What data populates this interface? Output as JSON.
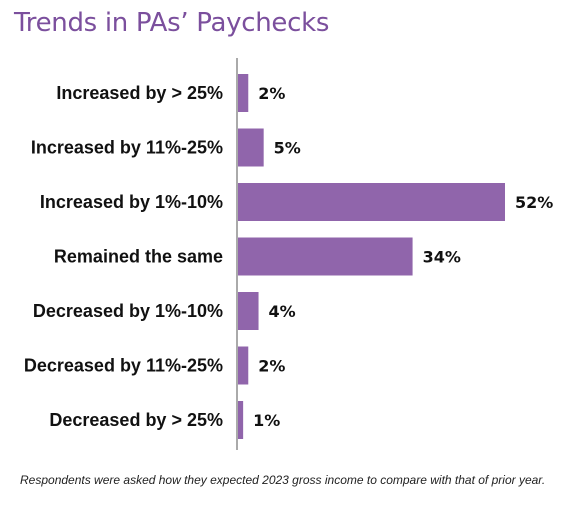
{
  "title": "Trends in PAs’ Paychecks",
  "footnote": "Respondents were asked how they expected 2023 gross income to compare with that of prior year.",
  "colors": {
    "bar": "#9065ab",
    "title": "#7b4f9d",
    "axis": "#555555"
  },
  "chart_data": {
    "type": "bar",
    "orientation": "horizontal",
    "title": "Trends in PAs’ Paychecks",
    "categories": [
      "Increased by > 25%",
      "Increased by 11%-25%",
      "Increased by 1%-10%",
      "Remained the same",
      "Decreased by 1%-10%",
      "Decreased by 11%-25%",
      "Decreased by > 25%"
    ],
    "values": [
      2,
      5,
      52,
      34,
      4,
      2,
      1
    ],
    "value_labels": [
      "2%",
      "5%",
      "52%",
      "34%",
      "4%",
      "2%",
      "1%"
    ],
    "xlim": [
      0,
      52
    ],
    "grid": false,
    "legend": "none"
  }
}
